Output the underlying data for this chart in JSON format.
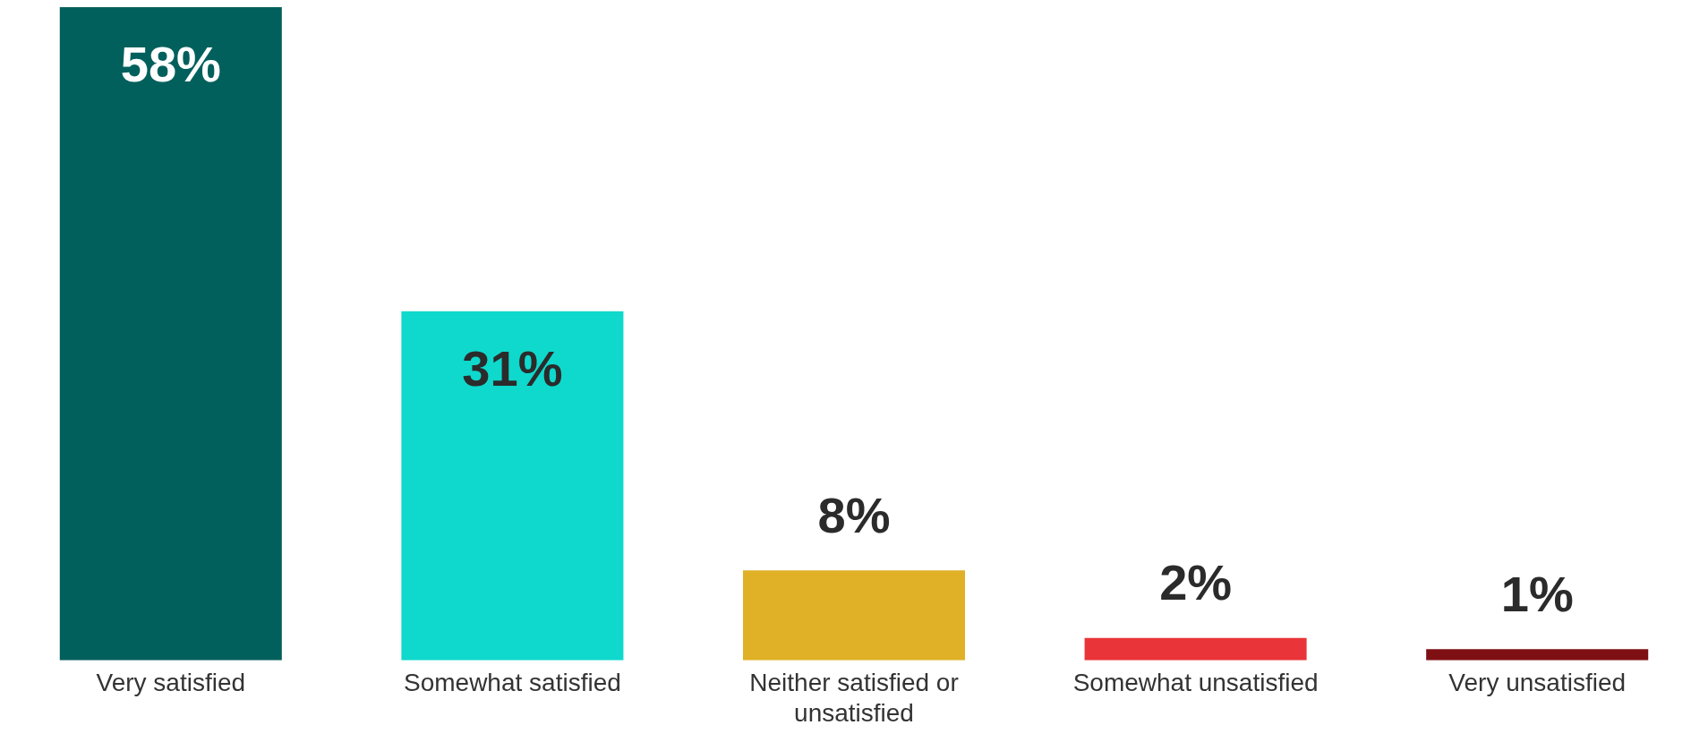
{
  "chart_data": {
    "type": "bar",
    "categories": [
      "Very satisfied",
      "Somewhat satisfied",
      "Neither satisfied or unsatisfied",
      "Somewhat unsatisfied",
      "Very unsatisfied"
    ],
    "values": [
      58,
      31,
      8,
      2,
      1
    ],
    "colors": [
      "#02605c",
      "#0fd8cc",
      "#e0b027",
      "#e93539",
      "#7e1014"
    ],
    "value_labels": [
      "58%",
      "31%",
      "8%",
      "2%",
      "1%"
    ],
    "grid": false,
    "legend": false
  }
}
